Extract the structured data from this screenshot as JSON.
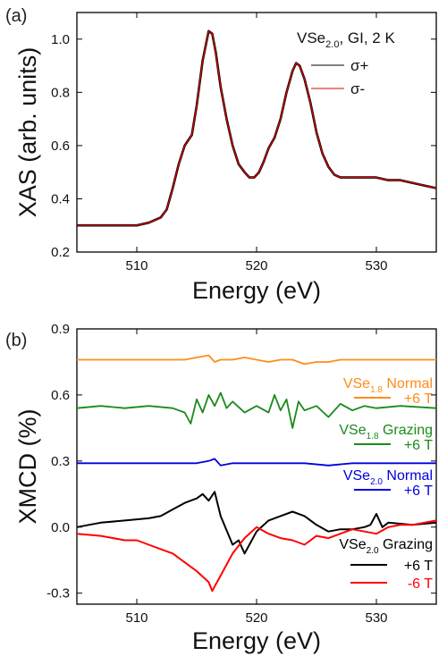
{
  "chart_data": [
    {
      "type": "line",
      "panel_label": "(a)",
      "ylabel": "XAS (arb. units)",
      "xlabel": "Energy (eV)",
      "xlim": [
        505,
        535
      ],
      "ylim": [
        0.2,
        1.1
      ],
      "xticks": [
        "510",
        "520",
        "530"
      ],
      "yticks": [
        "0.2",
        "0.4",
        "0.6",
        "0.8",
        "1.0"
      ],
      "annotation": {
        "pre": "VSe",
        "sub": "2.0",
        "post": ", GI, 2 K"
      },
      "legend_position": "top-right",
      "series": [
        {
          "name": "σ+",
          "color": "#000000",
          "x": [
            505,
            508,
            510,
            511,
            512,
            512.5,
            513,
            513.5,
            514,
            514.3,
            514.6,
            515,
            515.5,
            516,
            516.3,
            516.6,
            517,
            517.5,
            518,
            518.5,
            519,
            519.4,
            519.8,
            520.2,
            520.6,
            521,
            521.5,
            522,
            522.5,
            523,
            523.3,
            523.6,
            524,
            524.5,
            525,
            525.5,
            526,
            526.5,
            527,
            527.5,
            528,
            529,
            530,
            531,
            532,
            533,
            534,
            535
          ],
          "y": [
            0.3,
            0.3,
            0.3,
            0.31,
            0.33,
            0.36,
            0.44,
            0.53,
            0.6,
            0.62,
            0.64,
            0.75,
            0.92,
            1.03,
            1.02,
            0.95,
            0.82,
            0.7,
            0.6,
            0.53,
            0.5,
            0.48,
            0.48,
            0.5,
            0.54,
            0.59,
            0.63,
            0.7,
            0.8,
            0.88,
            0.91,
            0.9,
            0.85,
            0.76,
            0.65,
            0.57,
            0.52,
            0.49,
            0.48,
            0.48,
            0.48,
            0.48,
            0.48,
            0.47,
            0.47,
            0.46,
            0.45,
            0.44
          ]
        },
        {
          "name": "σ-",
          "color": "#e00000",
          "x": [
            505,
            508,
            510,
            511,
            512,
            512.5,
            513,
            513.5,
            514,
            514.3,
            514.6,
            515,
            515.5,
            516,
            516.3,
            516.6,
            517,
            517.5,
            518,
            518.5,
            519,
            519.4,
            519.8,
            520.2,
            520.6,
            521,
            521.5,
            522,
            522.5,
            523,
            523.3,
            523.6,
            524,
            524.5,
            525,
            525.5,
            526,
            526.5,
            527,
            527.5,
            528,
            529,
            530,
            531,
            532,
            533,
            534,
            535
          ],
          "y": [
            0.3,
            0.3,
            0.3,
            0.31,
            0.33,
            0.36,
            0.44,
            0.53,
            0.6,
            0.62,
            0.64,
            0.75,
            0.92,
            1.03,
            1.02,
            0.95,
            0.82,
            0.7,
            0.6,
            0.53,
            0.5,
            0.48,
            0.48,
            0.5,
            0.54,
            0.59,
            0.63,
            0.7,
            0.8,
            0.88,
            0.91,
            0.9,
            0.85,
            0.76,
            0.65,
            0.57,
            0.52,
            0.49,
            0.48,
            0.48,
            0.48,
            0.48,
            0.48,
            0.47,
            0.47,
            0.46,
            0.45,
            0.44
          ]
        }
      ]
    },
    {
      "type": "line",
      "panel_label": "(b)",
      "ylabel": "XMCD (%)",
      "xlabel": "Energy (eV)",
      "xlim": [
        505,
        535
      ],
      "ylim": [
        -0.35,
        0.9
      ],
      "xticks": [
        "510",
        "520",
        "530"
      ],
      "yticks": [
        "-0.3",
        "0.0",
        "0.3",
        "0.6",
        "0.9"
      ],
      "series": [
        {
          "name": "+6 T",
          "group": {
            "pre": "VSe",
            "sub": "1.8",
            "post": " Normal"
          },
          "color": "#ff8c1a",
          "x": [
            505,
            510,
            512,
            514,
            515,
            516,
            516.5,
            517,
            518,
            519,
            520,
            521,
            522,
            523,
            524,
            525,
            526,
            527,
            528,
            530,
            532,
            535
          ],
          "y": [
            0.76,
            0.76,
            0.76,
            0.76,
            0.77,
            0.78,
            0.75,
            0.76,
            0.76,
            0.77,
            0.76,
            0.75,
            0.76,
            0.76,
            0.74,
            0.75,
            0.75,
            0.76,
            0.76,
            0.76,
            0.76,
            0.76
          ]
        },
        {
          "name": "+6 T",
          "group": {
            "pre": "VSe",
            "sub": "1.8",
            "post": " Grazing"
          },
          "color": "#1a8a1a",
          "x": [
            505,
            507,
            509,
            511,
            513,
            514,
            514.5,
            515,
            515.5,
            516,
            516.5,
            517,
            517.5,
            518,
            519,
            520,
            521,
            521.5,
            522,
            522.5,
            523,
            523.5,
            524,
            525,
            526,
            527,
            528,
            529,
            530,
            532,
            535
          ],
          "y": [
            0.54,
            0.55,
            0.54,
            0.55,
            0.54,
            0.52,
            0.47,
            0.58,
            0.52,
            0.6,
            0.55,
            0.61,
            0.54,
            0.57,
            0.52,
            0.55,
            0.52,
            0.6,
            0.53,
            0.58,
            0.45,
            0.57,
            0.53,
            0.55,
            0.5,
            0.56,
            0.53,
            0.55,
            0.54,
            0.55,
            0.54
          ]
        },
        {
          "name": "+6 T",
          "group": {
            "pre": "VSe",
            "sub": "2.0",
            "post": " Normal"
          },
          "color": "#0000e0",
          "x": [
            505,
            510,
            513,
            515,
            516,
            516.5,
            517,
            518,
            520,
            522,
            524,
            526,
            528,
            530,
            532,
            535
          ],
          "y": [
            0.29,
            0.29,
            0.29,
            0.29,
            0.3,
            0.31,
            0.28,
            0.29,
            0.29,
            0.29,
            0.29,
            0.28,
            0.29,
            0.29,
            0.29,
            0.29
          ]
        },
        {
          "name": "+6 T",
          "group": {
            "pre": "VSe",
            "sub": "2.0",
            "post": " Grazing"
          },
          "color": "#000000",
          "x": [
            505,
            507,
            509,
            511,
            512,
            513,
            514,
            515,
            515.5,
            516,
            516.5,
            517,
            518,
            518.5,
            519,
            519.5,
            520,
            521,
            522,
            523,
            524,
            525,
            526,
            527,
            528,
            529,
            529.5,
            530,
            530.5,
            531,
            533,
            535
          ],
          "y": [
            0.0,
            0.02,
            0.03,
            0.04,
            0.05,
            0.08,
            0.11,
            0.13,
            0.15,
            0.12,
            0.16,
            0.05,
            -0.08,
            -0.06,
            -0.12,
            -0.07,
            -0.02,
            0.03,
            0.05,
            0.07,
            0.05,
            0.01,
            -0.02,
            -0.01,
            -0.01,
            0.0,
            0.01,
            0.06,
            0.0,
            0.02,
            0.01,
            0.02
          ]
        },
        {
          "name": "-6 T",
          "group": {
            "pre": "VSe",
            "sub": "2.0",
            "post": " Grazing"
          },
          "color": "#ff0000",
          "x": [
            505,
            507,
            509,
            510,
            511,
            512,
            513,
            514,
            515,
            516,
            516.3,
            516.6,
            517,
            518,
            519,
            520,
            521,
            522,
            523,
            524,
            525,
            526,
            527,
            528,
            529,
            530,
            531,
            532,
            533,
            534,
            535
          ],
          "y": [
            -0.03,
            -0.04,
            -0.06,
            -0.06,
            -0.08,
            -0.1,
            -0.12,
            -0.16,
            -0.2,
            -0.25,
            -0.29,
            -0.26,
            -0.22,
            -0.12,
            -0.05,
            0.0,
            -0.03,
            -0.05,
            -0.06,
            -0.08,
            -0.04,
            -0.05,
            -0.03,
            -0.01,
            -0.02,
            -0.03,
            0.0,
            0.01,
            0.01,
            0.02,
            0.03
          ]
        }
      ]
    }
  ]
}
